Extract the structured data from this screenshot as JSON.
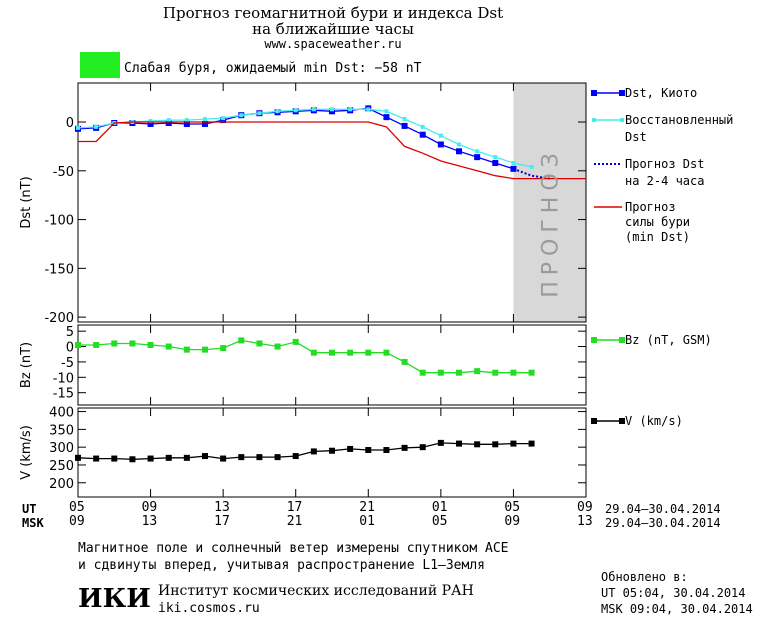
{
  "header": {
    "title_line1": "Прогноз геомагнитной бури и индекса Dst",
    "title_line2": "на ближайшие часы",
    "url": "www.spaceweather.ru",
    "storm_text": "Слабая буря, ожидаемый min Dst: −58 nT",
    "storm_color": "#22ee22"
  },
  "forecast_band_text": "ПРОГНОЗ",
  "time_axis": {
    "ut_label": "UT",
    "msk_label": "MSK",
    "ut_ticks": [
      "05",
      "09",
      "13",
      "17",
      "21",
      "01",
      "05",
      "09"
    ],
    "msk_ticks": [
      "09",
      "13",
      "17",
      "21",
      "01",
      "05",
      "09",
      "13"
    ],
    "tick_hours": [
      0,
      4,
      8,
      12,
      16,
      20,
      24,
      28
    ],
    "date_range_ut": "29.04–30.04.2014",
    "date_range_msk": "29.04–30.04.2014"
  },
  "chart_data": [
    {
      "type": "line",
      "ylabel": "Dst (nT)",
      "ylim": [
        -205,
        40
      ],
      "yticks": [
        0,
        -50,
        -100,
        -150,
        -200
      ],
      "xlim_hours": [
        0,
        28
      ],
      "forecast_band_hours": [
        24,
        28
      ],
      "series": [
        {
          "name": "Dst, Киото",
          "color": "#0000ff",
          "marker": "square",
          "x": [
            0,
            1,
            2,
            3,
            4,
            5,
            6,
            7,
            8,
            9,
            10,
            11,
            12,
            13,
            14,
            15,
            16,
            17,
            18,
            19,
            20,
            21,
            22,
            23,
            24
          ],
          "y": [
            -7,
            -6,
            -1,
            -1,
            -2,
            -1,
            -2,
            -2,
            2,
            7,
            9,
            10,
            11,
            12,
            11,
            12,
            14,
            5,
            -4,
            -13,
            -23,
            -30,
            -36,
            -42,
            -48
          ]
        },
        {
          "name": "Восстановленный Dst",
          "color": "#44eeee",
          "marker": "square_small",
          "x": [
            0,
            1,
            2,
            3,
            4,
            5,
            6,
            7,
            8,
            9,
            10,
            11,
            12,
            13,
            14,
            15,
            16,
            17,
            18,
            19,
            20,
            21,
            22,
            23,
            24,
            25
          ],
          "y": [
            -6,
            -5,
            -1,
            0,
            1,
            2,
            2,
            3,
            4,
            7,
            9,
            11,
            12,
            13,
            13,
            13,
            13,
            11,
            3,
            -5,
            -14,
            -23,
            -30,
            -36,
            -42,
            -46
          ]
        },
        {
          "name": "Прогноз Dst на 2-4 часа",
          "color": "#0000cc",
          "style": "dotted",
          "x": [
            24,
            25,
            26
          ],
          "y": [
            -48,
            -55,
            -58
          ]
        },
        {
          "name": "Прогноз силы бури (min Dst)",
          "color": "#dd0000",
          "style": "solid",
          "x": [
            0,
            1,
            2,
            3,
            4,
            5,
            6,
            7,
            8,
            9,
            10,
            11,
            12,
            13,
            14,
            15,
            16,
            17,
            18,
            19,
            20,
            21,
            22,
            23,
            24,
            25,
            26,
            27,
            28
          ],
          "y": [
            -20,
            -20,
            -1,
            0,
            0,
            0,
            0,
            0,
            0,
            0,
            0,
            0,
            0,
            0,
            0,
            0,
            0,
            -5,
            -25,
            -32,
            -40,
            -45,
            -50,
            -55,
            -58,
            -58,
            -58,
            -58,
            -58
          ]
        }
      ]
    },
    {
      "type": "line",
      "ylabel": "Bz (nT)",
      "ylim": [
        -19,
        7
      ],
      "yticks": [
        5,
        0,
        -5,
        -10,
        -15
      ],
      "xlim_hours": [
        0,
        28
      ],
      "series": [
        {
          "name": "Bz (nT, GSM)",
          "color": "#22dd22",
          "marker": "square",
          "x": [
            0,
            1,
            2,
            3,
            4,
            5,
            6,
            7,
            8,
            9,
            10,
            11,
            12,
            13,
            14,
            15,
            16,
            17,
            18,
            19,
            20,
            21,
            22,
            23,
            24,
            25
          ],
          "y": [
            0.5,
            0.5,
            1,
            1,
            0.5,
            0,
            -1,
            -1,
            -0.5,
            2,
            1,
            0,
            1.5,
            -2,
            -2,
            -2,
            -2,
            -2,
            -5,
            -8.5,
            -8.5,
            -8.5,
            -8,
            -8.5,
            -8.5,
            -8.5
          ]
        }
      ]
    },
    {
      "type": "line",
      "ylabel": "V (km/s)",
      "ylim": [
        160,
        410
      ],
      "yticks": [
        400,
        350,
        300,
        250,
        200
      ],
      "xlim_hours": [
        0,
        28
      ],
      "series": [
        {
          "name": "V (km/s)",
          "color": "#000000",
          "marker": "square",
          "x": [
            0,
            1,
            2,
            3,
            4,
            5,
            6,
            7,
            8,
            9,
            10,
            11,
            12,
            13,
            14,
            15,
            16,
            17,
            18,
            19,
            20,
            21,
            22,
            23,
            24,
            25
          ],
          "y": [
            270,
            268,
            268,
            266,
            268,
            270,
            270,
            275,
            268,
            272,
            272,
            272,
            275,
            288,
            290,
            295,
            292,
            292,
            298,
            300,
            312,
            310,
            308,
            308,
            310,
            310
          ]
        }
      ]
    }
  ],
  "legend": {
    "dst_kyoto": "Dst, Киото",
    "restored_line1": "Восстановленный",
    "restored_line2": "Dst",
    "forecast_line1": "Прогноз Dst",
    "forecast_line2": "на 2-4 часа",
    "strength_line1": "Прогноз",
    "strength_line2": "силы бури",
    "strength_line3": "(min Dst)",
    "bz": "Bz (nT, GSM)",
    "v": "V (km/s)"
  },
  "footer": {
    "note_line1": "Магнитное поле и солнечный ветер измерены спутником ACE",
    "note_line2": "и сдвинуты вперед, учитывая распространение L1–Земля",
    "logo_text": "ИКИ",
    "institute": "Институт космических исследований РАН",
    "site": "iki.cosmos.ru",
    "updated_label": "Обновлено в:",
    "updated_ut": "UT   05:04, 30.04.2014",
    "updated_msk": "MSK 09:04, 30.04.2014"
  }
}
